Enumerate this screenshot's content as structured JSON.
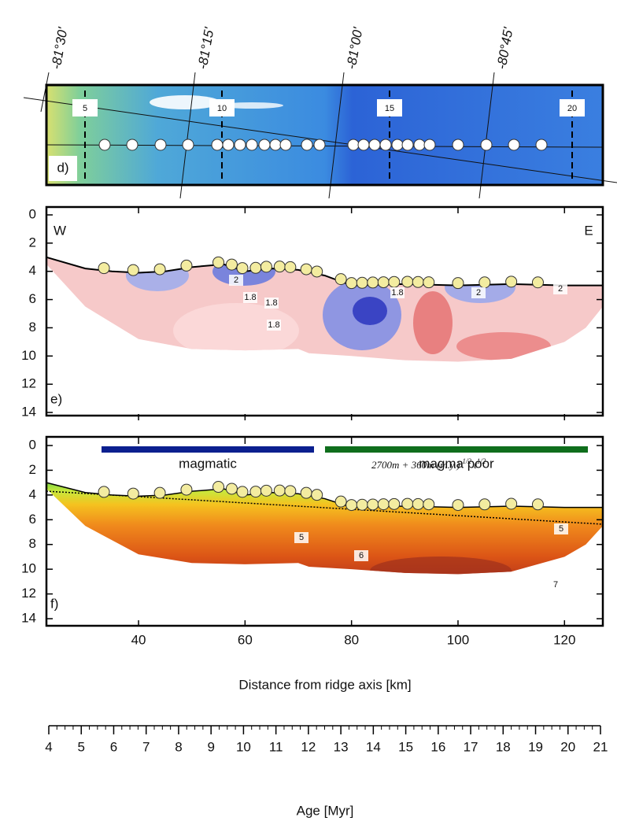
{
  "map": {
    "longitudes": [
      "-81°30'",
      "-81°15'",
      "-81°00'",
      "-80°45'"
    ],
    "sites": [
      "5",
      "10",
      "15",
      "20"
    ],
    "panel_label": "d)"
  },
  "panel_e": {
    "west": "W",
    "east": "E",
    "panel_label": "e)",
    "contour_labels": [
      "2",
      "1.8",
      "1.8",
      "1.8",
      "1.8",
      "2",
      "2"
    ]
  },
  "panel_f": {
    "panel_label": "f)",
    "bars": [
      {
        "label": "magmatic",
        "color": "#0b1f8f"
      },
      {
        "label": "magma poor",
        "color": "#0f6e1c"
      }
    ],
    "formula": {
      "main": "2700m + 360m (m.y.)",
      "exp1": "-1/2",
      "t": " t",
      "exp2": "1/2"
    },
    "contour_labels": [
      "5",
      "6",
      "5",
      "7"
    ]
  },
  "depth_ticks": [
    0,
    2,
    4,
    6,
    8,
    10,
    12,
    14
  ],
  "distance_ticks": [
    40,
    60,
    80,
    100,
    120
  ],
  "distance_label": "Distance from ridge axis [km]",
  "age_ticks": [
    4,
    5,
    6,
    7,
    8,
    9,
    10,
    11,
    12,
    13,
    14,
    15,
    16,
    17,
    18,
    19,
    20,
    21
  ],
  "age_label": "Age [Myr]"
}
